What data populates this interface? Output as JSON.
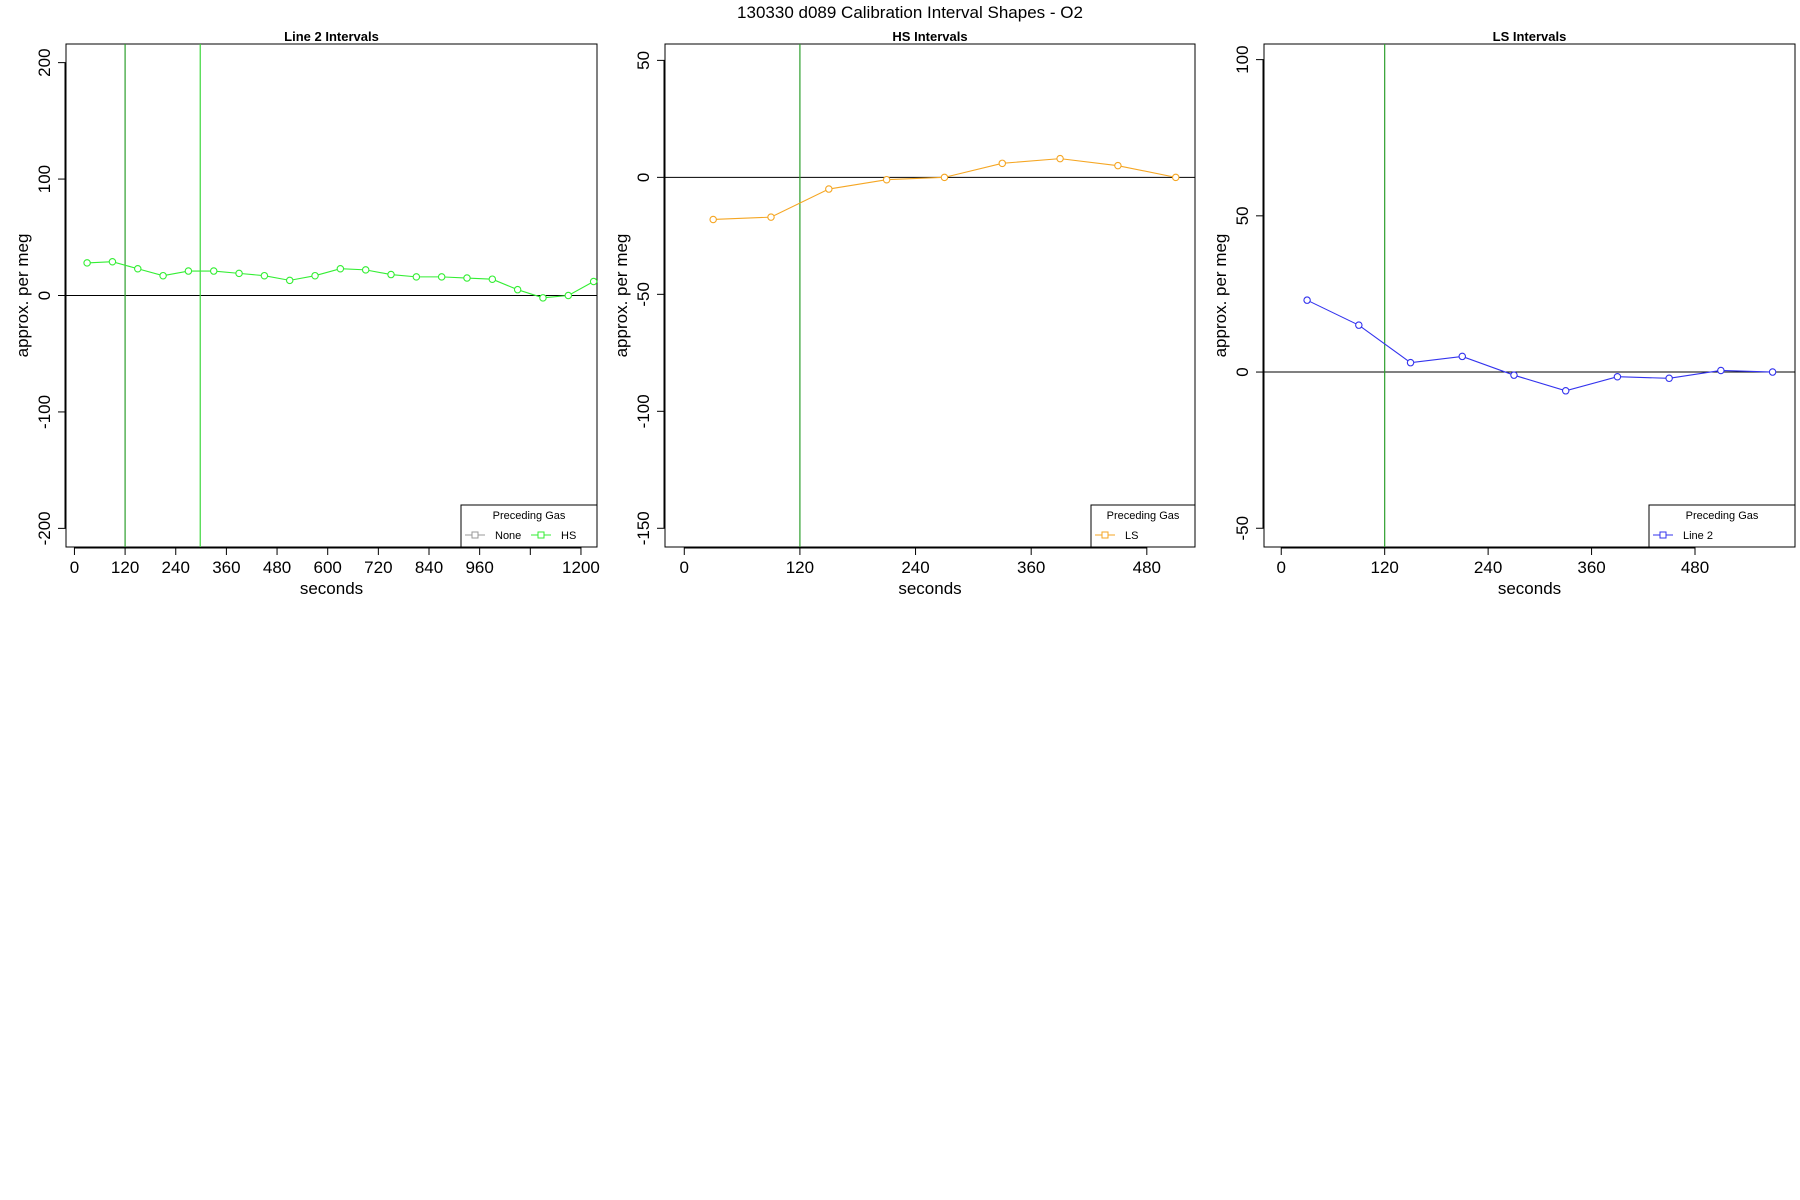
{
  "title": "130330   d089   Calibration Interval Shapes - O2",
  "chart_data": [
    {
      "type": "line",
      "title": "Line 2 Intervals",
      "xlabel": "seconds",
      "ylabel": "approx. per meg",
      "xlim": [
        -20,
        1238
      ],
      "ylim": [
        -216,
        216
      ],
      "x_ticks": [
        0,
        120,
        240,
        360,
        480,
        600,
        720,
        840,
        960,
        1080,
        1200
      ],
      "x_tick_labels": [
        "0",
        "120",
        "240",
        "360",
        "480",
        "600",
        "720",
        "840",
        "960",
        "",
        "1200"
      ],
      "y_ticks": [
        -200,
        -100,
        0,
        100,
        200
      ],
      "y_tick_labels": [
        "-200",
        "-100",
        "0",
        "100",
        "200"
      ],
      "hline": 0,
      "vlines": [
        {
          "x": 120,
          "color": "#2e9e2e"
        },
        {
          "x": 298,
          "color": "#3bd63b"
        }
      ],
      "series": [
        {
          "name": "HS",
          "color": "#33ee33",
          "x": [
            30,
            90,
            150,
            210,
            270,
            330,
            390,
            450,
            510,
            570,
            630,
            690,
            750,
            810,
            870,
            930,
            990,
            1050,
            1110,
            1170,
            1230
          ],
          "y": [
            28,
            29,
            23,
            17,
            21,
            21,
            19,
            17,
            13,
            17,
            23,
            22,
            18,
            16,
            16,
            15,
            14,
            5,
            -2,
            0,
            12
          ]
        }
      ],
      "legend": {
        "title": "Preceding Gas",
        "position": "bottom-right",
        "entries": [
          {
            "label": "None",
            "color": "#999999"
          },
          {
            "label": "HS",
            "color": "#33ee33"
          }
        ]
      }
    },
    {
      "type": "line",
      "title": "HS Intervals",
      "xlabel": "seconds",
      "ylabel": "approx. per meg",
      "xlim": [
        -20,
        530
      ],
      "ylim": [
        -158,
        57
      ],
      "x_ticks": [
        0,
        120,
        240,
        360,
        480
      ],
      "x_tick_labels": [
        "0",
        "120",
        "240",
        "360",
        "480"
      ],
      "y_ticks": [
        -150,
        -100,
        -50,
        0,
        50
      ],
      "y_tick_labels": [
        "-150",
        "-100",
        "-50",
        "0",
        "50"
      ],
      "hline": 0,
      "vlines": [
        {
          "x": 120,
          "color": "#2e9e2e"
        }
      ],
      "series": [
        {
          "name": "LS",
          "color": "#f5a623",
          "x": [
            30,
            90,
            150,
            210,
            270,
            330,
            390,
            450,
            510
          ],
          "y": [
            -18,
            -17,
            -5,
            -1,
            0,
            6,
            8,
            5,
            0
          ]
        }
      ],
      "legend": {
        "title": "Preceding Gas",
        "position": "bottom-right",
        "entries": [
          {
            "label": "LS",
            "color": "#f5a623"
          }
        ]
      }
    },
    {
      "type": "line",
      "title": "LS Intervals",
      "xlabel": "seconds",
      "ylabel": "approx. per meg",
      "xlim": [
        -20,
        596
      ],
      "ylim": [
        -56,
        105
      ],
      "x_ticks": [
        0,
        120,
        240,
        360,
        480
      ],
      "x_tick_labels": [
        "0",
        "120",
        "240",
        "360",
        "480"
      ],
      "y_ticks": [
        -50,
        0,
        50,
        100
      ],
      "y_tick_labels": [
        "-50",
        "0",
        "50",
        "100"
      ],
      "hline": 0,
      "vlines": [
        {
          "x": 120,
          "color": "#2e9e2e"
        }
      ],
      "series": [
        {
          "name": "Line 2",
          "color": "#3333ee",
          "x": [
            30,
            90,
            150,
            210,
            270,
            330,
            390,
            450,
            510,
            570
          ],
          "y": [
            23,
            15,
            3,
            5,
            -1,
            -6,
            -1.5,
            -2,
            0.5,
            0
          ]
        }
      ],
      "legend": {
        "title": "Preceding Gas",
        "position": "bottom-right",
        "entries": [
          {
            "label": "Line 2",
            "color": "#3333ee"
          }
        ]
      }
    }
  ]
}
